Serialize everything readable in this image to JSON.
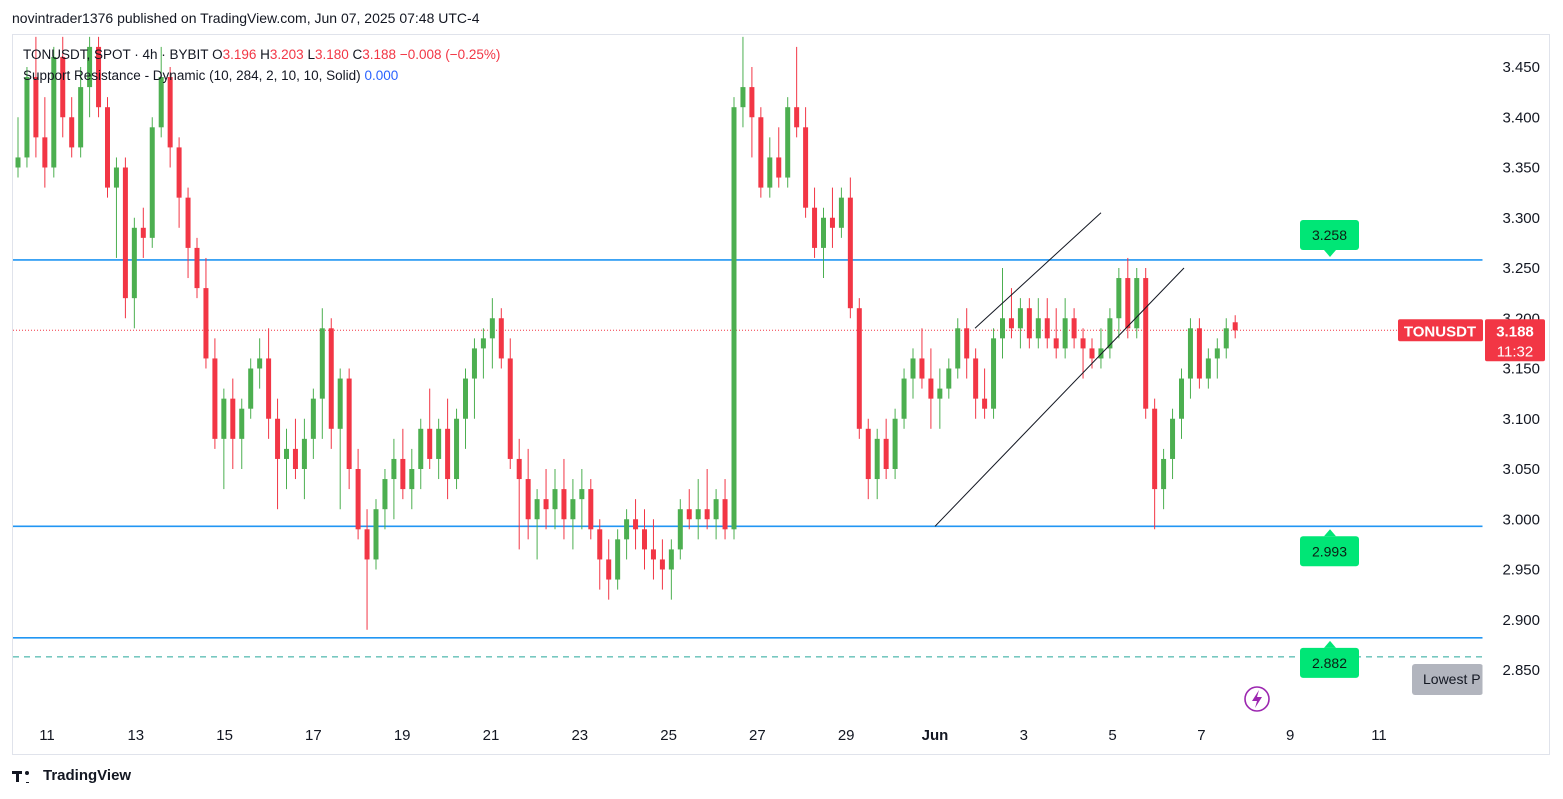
{
  "header": {
    "published": "novintrader1376 published on TradingView.com, Jun 07, 2025 07:48 UTC-4"
  },
  "legend": {
    "symbol": "TONUSDT, SPOT · 4h · BYBIT",
    "o_label": "O",
    "o_value": "3.196",
    "h_label": "H",
    "h_value": "3.203",
    "l_label": "L",
    "l_value": "3.180",
    "c_label": "C",
    "c_value": "3.188",
    "change": "−0.008 (−0.25%)",
    "indicator": "Support Resistance - Dynamic (10, 284, 2, 10, 10, Solid)",
    "indicator_value": "0.000"
  },
  "price_tag": {
    "symbol": "TONUSDT",
    "price": "3.188",
    "countdown": "11:32"
  },
  "lowest_label": "Lowest P",
  "footer": {
    "brand": "TradingView"
  },
  "colors": {
    "up": "#4caf50",
    "down": "#f23645",
    "level_line": "#2196f3",
    "level_badge": "#00e676",
    "price_tag": "#f23645"
  },
  "icons": {
    "lightning": "lightning-bolt-icon",
    "logo": "tradingview-logo-icon"
  },
  "chart_data": {
    "type": "candlestick",
    "symbol": "TONUSDT",
    "interval": "4h",
    "ylim": [
      2.83,
      3.48
    ],
    "y_ticks": [
      "3.450",
      "3.400",
      "3.350",
      "3.300",
      "3.250",
      "3.200",
      "3.150",
      "3.100",
      "3.050",
      "3.000",
      "2.950",
      "2.900",
      "2.850"
    ],
    "x_ticks": [
      "11",
      "13",
      "15",
      "17",
      "19",
      "21",
      "23",
      "25",
      "27",
      "29",
      "Jun",
      "3",
      "5",
      "7",
      "9",
      "11"
    ],
    "horizontal_levels": [
      {
        "value": 3.258,
        "label": "3.258"
      },
      {
        "value": 2.993,
        "label": "2.993"
      },
      {
        "value": 2.882,
        "label": "2.882"
      }
    ],
    "lowest_price_line": 2.863,
    "last_price": 3.188,
    "channel": {
      "lower_start": [
        "May 31",
        2.993
      ],
      "lower_end": [
        "Jun 5",
        3.25
      ],
      "upper_start": [
        "May 31",
        3.19
      ],
      "upper_end": [
        "Jun 3",
        3.305
      ]
    },
    "series": [
      {
        "name": "TONUSDT",
        "ohlc": [
          [
            3.35,
            3.4,
            3.34,
            3.36
          ],
          [
            3.36,
            3.45,
            3.35,
            3.44
          ],
          [
            3.44,
            3.48,
            3.36,
            3.38
          ],
          [
            3.38,
            3.42,
            3.33,
            3.35
          ],
          [
            3.35,
            3.47,
            3.34,
            3.46
          ],
          [
            3.46,
            3.48,
            3.38,
            3.4
          ],
          [
            3.4,
            3.42,
            3.36,
            3.37
          ],
          [
            3.37,
            3.45,
            3.36,
            3.43
          ],
          [
            3.43,
            3.48,
            3.4,
            3.47
          ],
          [
            3.47,
            3.48,
            3.4,
            3.41
          ],
          [
            3.41,
            3.42,
            3.32,
            3.33
          ],
          [
            3.33,
            3.36,
            3.26,
            3.35
          ],
          [
            3.35,
            3.36,
            3.2,
            3.22
          ],
          [
            3.22,
            3.3,
            3.19,
            3.29
          ],
          [
            3.29,
            3.31,
            3.26,
            3.28
          ],
          [
            3.28,
            3.4,
            3.27,
            3.39
          ],
          [
            3.39,
            3.47,
            3.38,
            3.44
          ],
          [
            3.44,
            3.45,
            3.35,
            3.37
          ],
          [
            3.37,
            3.38,
            3.29,
            3.32
          ],
          [
            3.32,
            3.33,
            3.24,
            3.27
          ],
          [
            3.27,
            3.28,
            3.22,
            3.23
          ],
          [
            3.23,
            3.26,
            3.15,
            3.16
          ],
          [
            3.16,
            3.18,
            3.07,
            3.08
          ],
          [
            3.08,
            3.13,
            3.03,
            3.12
          ],
          [
            3.12,
            3.14,
            3.05,
            3.08
          ],
          [
            3.08,
            3.12,
            3.05,
            3.11
          ],
          [
            3.11,
            3.16,
            3.1,
            3.15
          ],
          [
            3.15,
            3.18,
            3.13,
            3.16
          ],
          [
            3.16,
            3.19,
            3.08,
            3.1
          ],
          [
            3.1,
            3.12,
            3.01,
            3.06
          ],
          [
            3.06,
            3.09,
            3.03,
            3.07
          ],
          [
            3.07,
            3.1,
            3.04,
            3.05
          ],
          [
            3.05,
            3.1,
            3.02,
            3.08
          ],
          [
            3.08,
            3.13,
            3.06,
            3.12
          ],
          [
            3.12,
            3.21,
            3.08,
            3.19
          ],
          [
            3.19,
            3.2,
            3.07,
            3.09
          ],
          [
            3.09,
            3.15,
            3.01,
            3.14
          ],
          [
            3.14,
            3.15,
            3.03,
            3.05
          ],
          [
            3.05,
            3.07,
            2.98,
            2.99
          ],
          [
            2.99,
            3.01,
            2.89,
            2.96
          ],
          [
            2.96,
            3.02,
            2.95,
            3.01
          ],
          [
            3.01,
            3.05,
            2.99,
            3.04
          ],
          [
            3.04,
            3.08,
            3.0,
            3.06
          ],
          [
            3.06,
            3.09,
            3.02,
            3.03
          ],
          [
            3.03,
            3.07,
            3.01,
            3.05
          ],
          [
            3.05,
            3.1,
            3.03,
            3.09
          ],
          [
            3.09,
            3.13,
            3.05,
            3.06
          ],
          [
            3.06,
            3.1,
            3.04,
            3.09
          ],
          [
            3.09,
            3.12,
            3.02,
            3.04
          ],
          [
            3.04,
            3.11,
            3.03,
            3.1
          ],
          [
            3.1,
            3.15,
            3.07,
            3.14
          ],
          [
            3.14,
            3.18,
            3.1,
            3.17
          ],
          [
            3.17,
            3.19,
            3.14,
            3.18
          ],
          [
            3.18,
            3.22,
            3.15,
            3.2
          ],
          [
            3.2,
            3.21,
            3.15,
            3.16
          ],
          [
            3.16,
            3.18,
            3.05,
            3.06
          ],
          [
            3.06,
            3.08,
            2.97,
            3.04
          ],
          [
            3.04,
            3.07,
            2.98,
            3.0
          ],
          [
            3.0,
            3.03,
            2.96,
            3.02
          ],
          [
            3.02,
            3.05,
            2.99,
            3.01
          ],
          [
            3.01,
            3.05,
            2.99,
            3.03
          ],
          [
            3.03,
            3.06,
            2.98,
            3.0
          ],
          [
            3.0,
            3.04,
            2.97,
            3.02
          ],
          [
            3.02,
            3.05,
            2.99,
            3.03
          ],
          [
            3.03,
            3.04,
            2.98,
            2.99
          ],
          [
            2.99,
            3.0,
            2.93,
            2.96
          ],
          [
            2.96,
            2.98,
            2.92,
            2.94
          ],
          [
            2.94,
            2.99,
            2.93,
            2.98
          ],
          [
            2.98,
            3.01,
            2.96,
            3.0
          ],
          [
            3.0,
            3.02,
            2.97,
            2.99
          ],
          [
            2.99,
            3.01,
            2.95,
            2.97
          ],
          [
            2.97,
            3.0,
            2.94,
            2.96
          ],
          [
            2.96,
            2.98,
            2.93,
            2.95
          ],
          [
            2.95,
            2.98,
            2.92,
            2.97
          ],
          [
            2.97,
            3.02,
            2.96,
            3.01
          ],
          [
            3.01,
            3.03,
            2.99,
            3.0
          ],
          [
            3.0,
            3.04,
            2.98,
            3.01
          ],
          [
            3.01,
            3.05,
            2.99,
            3.0
          ],
          [
            3.0,
            3.03,
            2.98,
            3.02
          ],
          [
            3.02,
            3.04,
            2.98,
            2.99
          ],
          [
            2.99,
            3.42,
            2.98,
            3.41
          ],
          [
            3.41,
            3.48,
            3.39,
            3.43
          ],
          [
            3.43,
            3.45,
            3.36,
            3.4
          ],
          [
            3.4,
            3.41,
            3.32,
            3.33
          ],
          [
            3.33,
            3.38,
            3.32,
            3.36
          ],
          [
            3.36,
            3.39,
            3.33,
            3.34
          ],
          [
            3.34,
            3.42,
            3.33,
            3.41
          ],
          [
            3.41,
            3.47,
            3.38,
            3.39
          ],
          [
            3.39,
            3.41,
            3.3,
            3.31
          ],
          [
            3.31,
            3.33,
            3.26,
            3.27
          ],
          [
            3.27,
            3.31,
            3.24,
            3.3
          ],
          [
            3.3,
            3.33,
            3.27,
            3.29
          ],
          [
            3.29,
            3.33,
            3.28,
            3.32
          ],
          [
            3.32,
            3.34,
            3.2,
            3.21
          ],
          [
            3.21,
            3.22,
            3.08,
            3.09
          ],
          [
            3.09,
            3.1,
            3.02,
            3.04
          ],
          [
            3.04,
            3.09,
            3.02,
            3.08
          ],
          [
            3.08,
            3.1,
            3.04,
            3.05
          ],
          [
            3.05,
            3.11,
            3.04,
            3.1
          ],
          [
            3.1,
            3.15,
            3.09,
            3.14
          ],
          [
            3.14,
            3.17,
            3.12,
            3.16
          ],
          [
            3.16,
            3.19,
            3.13,
            3.14
          ],
          [
            3.14,
            3.17,
            3.09,
            3.12
          ],
          [
            3.12,
            3.15,
            3.09,
            3.13
          ],
          [
            3.13,
            3.16,
            3.12,
            3.15
          ],
          [
            3.15,
            3.2,
            3.14,
            3.19
          ],
          [
            3.19,
            3.21,
            3.14,
            3.16
          ],
          [
            3.16,
            3.17,
            3.1,
            3.12
          ],
          [
            3.12,
            3.15,
            3.1,
            3.11
          ],
          [
            3.11,
            3.19,
            3.1,
            3.18
          ],
          [
            3.18,
            3.25,
            3.16,
            3.2
          ],
          [
            3.2,
            3.23,
            3.18,
            3.19
          ],
          [
            3.19,
            3.22,
            3.17,
            3.21
          ],
          [
            3.21,
            3.22,
            3.17,
            3.18
          ],
          [
            3.18,
            3.22,
            3.17,
            3.2
          ],
          [
            3.2,
            3.22,
            3.17,
            3.18
          ],
          [
            3.18,
            3.21,
            3.16,
            3.17
          ],
          [
            3.17,
            3.22,
            3.16,
            3.2
          ],
          [
            3.2,
            3.21,
            3.17,
            3.18
          ],
          [
            3.18,
            3.19,
            3.14,
            3.17
          ],
          [
            3.17,
            3.18,
            3.15,
            3.16
          ],
          [
            3.16,
            3.19,
            3.15,
            3.17
          ],
          [
            3.17,
            3.21,
            3.16,
            3.2
          ],
          [
            3.2,
            3.25,
            3.18,
            3.24
          ],
          [
            3.24,
            3.26,
            3.18,
            3.19
          ],
          [
            3.19,
            3.25,
            3.18,
            3.24
          ],
          [
            3.24,
            3.25,
            3.1,
            3.11
          ],
          [
            3.11,
            3.12,
            2.99,
            3.03
          ],
          [
            3.03,
            3.07,
            3.01,
            3.06
          ],
          [
            3.06,
            3.11,
            3.04,
            3.1
          ],
          [
            3.1,
            3.15,
            3.08,
            3.14
          ],
          [
            3.14,
            3.2,
            3.12,
            3.19
          ],
          [
            3.19,
            3.2,
            3.13,
            3.14
          ],
          [
            3.14,
            3.17,
            3.13,
            3.16
          ],
          [
            3.16,
            3.18,
            3.14,
            3.17
          ],
          [
            3.17,
            3.2,
            3.16,
            3.19
          ],
          [
            3.196,
            3.203,
            3.18,
            3.188
          ]
        ]
      }
    ]
  }
}
